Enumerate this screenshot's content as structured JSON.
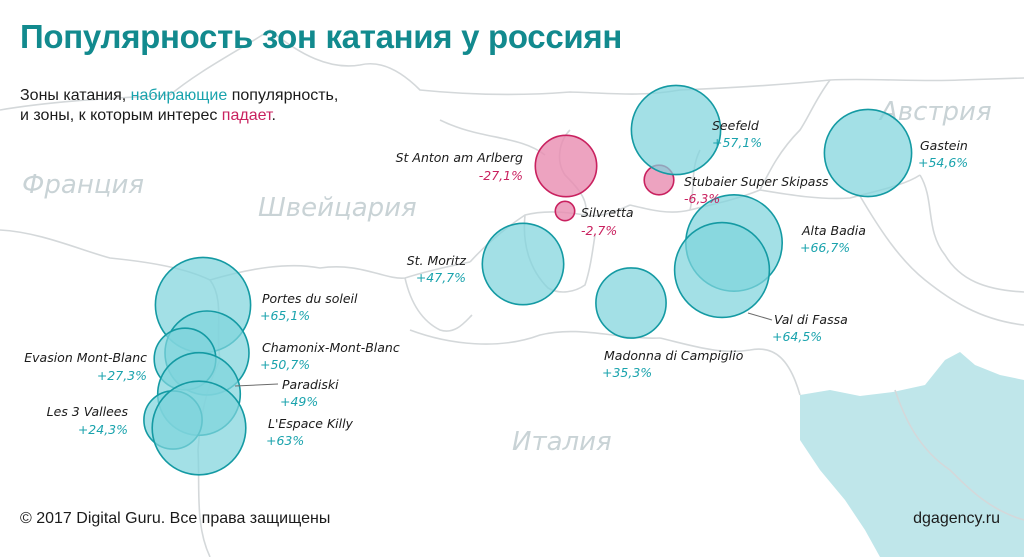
{
  "title": "Популярность зон катания у россиян",
  "subtitle": {
    "line1_start": "Зоны катания, ",
    "line1_grow": "набирающие",
    "line1_end": " популярность,",
    "line2_start": "и зоны, к которым интерес ",
    "line2_fall": "падает",
    "line2_end": "."
  },
  "colors": {
    "grow_fill": "#7fd4dc",
    "grow_stroke": "#149aa3",
    "grow_text": "#1aa3ad",
    "fall_fill": "#e88cb0",
    "fall_stroke": "#c9215f",
    "fall_text": "#c9215f",
    "water": "#bfe6ea",
    "borders": "#d4d8da",
    "country_labels": "#c9d3d6",
    "title": "#128a8e"
  },
  "countries": [
    {
      "name": "Франция"
    },
    {
      "name": "Швейцария"
    },
    {
      "name": "Италия"
    },
    {
      "name": "Австрия"
    }
  ],
  "chart_data": {
    "type": "bubble-map",
    "zones": [
      {
        "name": "St Anton am Arlberg",
        "value": "-27,1%",
        "change": -27.1
      },
      {
        "name": "Silvretta",
        "value": "-2,7%",
        "change": -2.7
      },
      {
        "name": "Stubaier Super Skipass",
        "value": "-6,3%",
        "change": -6.3
      },
      {
        "name": "Seefeld",
        "value": "+57,1%",
        "change": 57.1
      },
      {
        "name": "Gastein",
        "value": "+54,6%",
        "change": 54.6
      },
      {
        "name": "Alta Badia",
        "value": "+66,7%",
        "change": 66.7
      },
      {
        "name": "Val di Fassa",
        "value": "+64,5%",
        "change": 64.5
      },
      {
        "name": "St. Moritz",
        "value": "+47,7%",
        "change": 47.7
      },
      {
        "name": "Madonna di Campiglio",
        "value": "+35,3%",
        "change": 35.3
      },
      {
        "name": "Portes du soleil",
        "value": "+65,1%",
        "change": 65.1
      },
      {
        "name": "Chamonix-Mont-Blanc",
        "value": "+50,7%",
        "change": 50.7
      },
      {
        "name": "Evasion Mont-Blanc",
        "value": "+27,3%",
        "change": 27.3
      },
      {
        "name": "Paradiski",
        "value": "+49%",
        "change": 49
      },
      {
        "name": "Les 3 Vallees",
        "value": "+24,3%",
        "change": 24.3
      },
      {
        "name": "L'Espace Killy",
        "value": "+63%",
        "change": 63
      }
    ]
  },
  "footer": {
    "copyright": "© 2017 Digital Guru. Все права защищены",
    "site": "dgagency.ru"
  }
}
